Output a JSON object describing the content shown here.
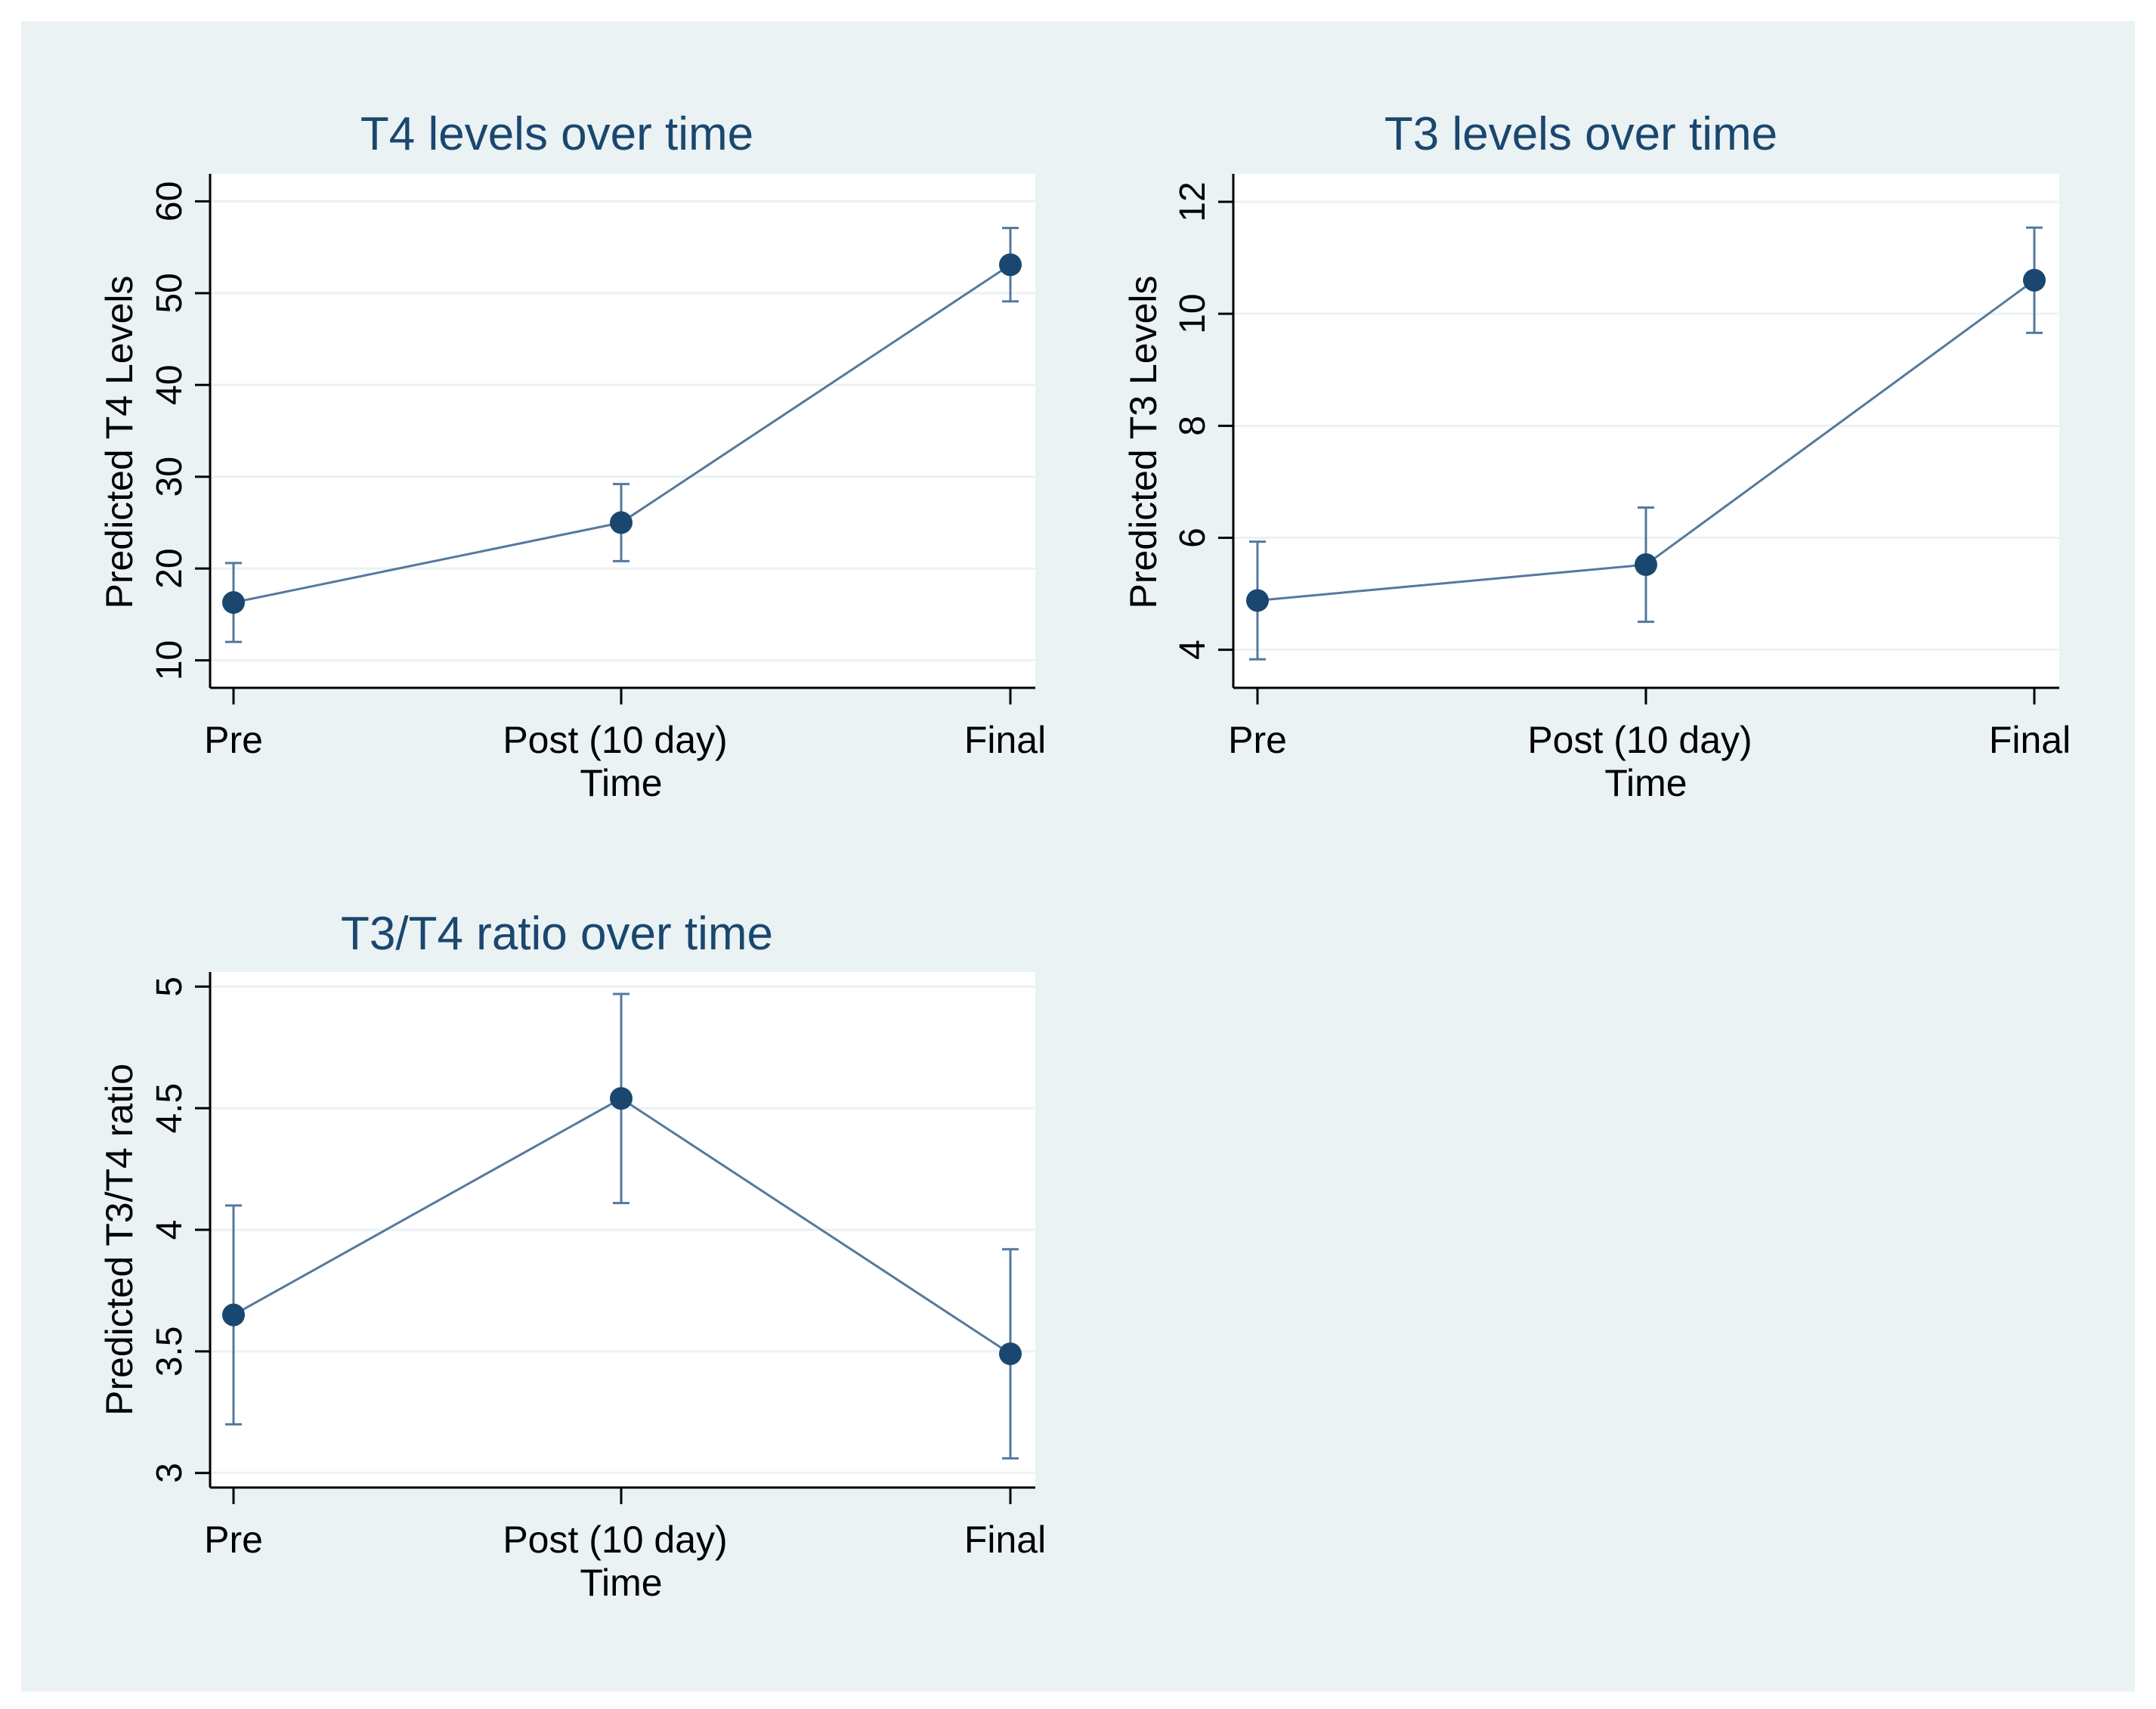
{
  "colors": {
    "page_background": "#ffffff",
    "figure_background": "#eaf2f3",
    "plot_background": "#ffffff",
    "gridline": "#eaf2f3",
    "axis_line": "#000000",
    "title_text": "#1a476f",
    "label_text": "#000000",
    "series_line": "#55799e",
    "marker": "#1a476f"
  },
  "icons": {
    "marker": "filled-circle"
  },
  "chart_data": [
    {
      "type": "line",
      "title": "T4 levels over time",
      "xlabel": "Time",
      "ylabel": "Predicted T4 Levels",
      "categories": [
        "Pre",
        "Post (10 day)",
        "Final"
      ],
      "values": [
        16.3,
        25.0,
        53.1
      ],
      "ci_low": [
        12.0,
        20.8,
        49.1
      ],
      "ci_high": [
        20.6,
        29.2,
        57.1
      ],
      "yticks": [
        "10",
        "20",
        "30",
        "40",
        "50",
        "60"
      ],
      "ylim": [
        7,
        63
      ],
      "grid": true,
      "error_bars": true
    },
    {
      "type": "line",
      "title": "T3 levels over time",
      "xlabel": "Time",
      "ylabel": "Predicted T3 Levels",
      "categories": [
        "Pre",
        "Post (10 day)",
        "Final"
      ],
      "values": [
        4.88,
        5.52,
        10.6
      ],
      "ci_low": [
        3.83,
        4.5,
        9.66
      ],
      "ci_high": [
        5.93,
        6.54,
        11.54
      ],
      "yticks": [
        "4",
        "6",
        "8",
        "10",
        "12"
      ],
      "ylim": [
        3.32,
        12.5
      ],
      "grid": true,
      "error_bars": true
    },
    {
      "type": "line",
      "title": "T3/T4 ratio over time",
      "xlabel": "Time",
      "ylabel": "Predicted T3/T4 ratio",
      "categories": [
        "Pre",
        "Post (10 day)",
        "Final"
      ],
      "values": [
        3.65,
        4.54,
        3.49
      ],
      "ci_low": [
        3.2,
        4.11,
        3.06
      ],
      "ci_high": [
        4.1,
        4.97,
        3.92
      ],
      "yticks": [
        "3",
        "3.5",
        "4",
        "4.5",
        "5"
      ],
      "ylim": [
        2.94,
        5.06
      ],
      "grid": true,
      "error_bars": true
    }
  ]
}
